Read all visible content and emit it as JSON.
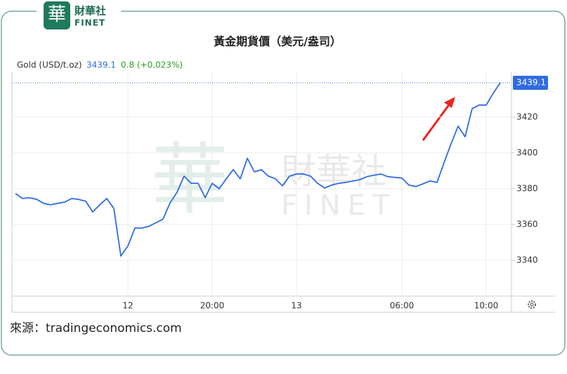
{
  "logo": {
    "mark": "華",
    "name": "財華社",
    "sub": "FINET"
  },
  "chart_data": {
    "type": "line",
    "title": "黃金期貨價（美元/盎司）",
    "series_name": "Gold (USD/t.oz)",
    "last": 3439.1,
    "change": "0.8 (+0.023%)",
    "categories": [
      null,
      null,
      null,
      null,
      null,
      null,
      null,
      null,
      null,
      null,
      null,
      null,
      null,
      null,
      null,
      null,
      "12",
      null,
      null,
      null,
      null,
      null,
      null,
      null,
      null,
      null,
      null,
      null,
      "20:00",
      null,
      null,
      null,
      null,
      null,
      null,
      null,
      null,
      null,
      null,
      null,
      "13",
      null,
      null,
      null,
      null,
      null,
      null,
      null,
      null,
      null,
      null,
      null,
      null,
      null,
      null,
      "06:00",
      null,
      null,
      null,
      null,
      null,
      null,
      null,
      null,
      null,
      null,
      null,
      "10:00",
      null,
      null
    ],
    "values": [
      3377.3,
      3374.5,
      3374.9,
      3374.1,
      3371.8,
      3371,
      3371.8,
      3372.5,
      3374.5,
      3374,
      3373,
      3367,
      3371,
      3374.5,
      3369,
      3342.4,
      3348,
      3358,
      3358,
      3359,
      3361,
      3363,
      3372,
      3378,
      3387,
      3383,
      3383,
      3375,
      3383,
      3380,
      3385.5,
      3390.6,
      3385.5,
      3397,
      3389.4,
      3390.6,
      3387,
      3385.5,
      3381.6,
      3387,
      3388.2,
      3388.2,
      3387,
      3383,
      3380.4,
      3382,
      3383,
      3383.5,
      3384.3,
      3385,
      3386.7,
      3387.5,
      3388.2,
      3386.7,
      3386.3,
      3385.9,
      3382,
      3381.2,
      3382.7,
      3384.3,
      3383.5,
      3394.5,
      3405.1,
      3414.9,
      3409,
      3424.7,
      3426.7,
      3426.7,
      3433.3,
      3439.1
    ],
    "color": "#2f6be3",
    "ylim": [
      3320,
      3445
    ],
    "yticks": [
      3340,
      3360,
      3380,
      3400,
      3420
    ],
    "grid": true,
    "source": "來源：tradingeconomics.com"
  }
}
